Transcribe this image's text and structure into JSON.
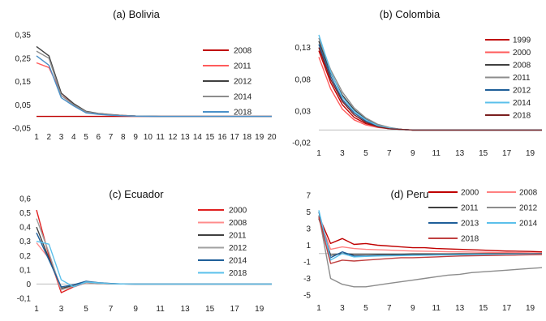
{
  "chart_data": [
    {
      "type": "line",
      "title": "(a)  Bolivia",
      "x": [
        1,
        2,
        3,
        4,
        5,
        6,
        7,
        8,
        9,
        10,
        11,
        12,
        13,
        14,
        15,
        16,
        17,
        18,
        19,
        20
      ],
      "x_tick_labels": [
        "1",
        "2",
        "3",
        "4",
        "5",
        "6",
        "7",
        "8",
        "9",
        "10",
        "11",
        "12",
        "13",
        "14",
        "15",
        "16",
        "17",
        "18",
        "19",
        "20"
      ],
      "ylim": [
        -0.05,
        0.35
      ],
      "y_ticks": [
        -0.05,
        0.05,
        0.15,
        0.25,
        0.35
      ],
      "y_tick_labels": [
        "-0,05",
        "0,05",
        "0,15",
        "0,25",
        "0,35"
      ],
      "legend_position": "right",
      "series": [
        {
          "name": "2008",
          "color": "#c00000",
          "values": [
            0,
            0,
            0,
            0,
            0,
            0,
            0,
            0,
            0,
            0,
            0,
            0,
            0,
            0,
            0,
            0,
            0,
            0,
            0,
            0
          ]
        },
        {
          "name": "2011",
          "color": "#ff5b5b",
          "values": [
            0.23,
            0.21,
            0.1,
            0.05,
            0.02,
            0.012,
            0.007,
            0.004,
            0.002,
            0.001,
            0,
            0,
            0,
            0,
            0,
            0,
            0,
            0,
            0,
            0
          ]
        },
        {
          "name": "2012",
          "color": "#404040",
          "values": [
            0.3,
            0.26,
            0.1,
            0.055,
            0.022,
            0.013,
            0.008,
            0.004,
            0.002,
            0.001,
            0,
            0,
            0,
            0,
            0,
            0,
            0,
            0,
            0,
            0
          ]
        },
        {
          "name": "2014",
          "color": "#8c8c8c",
          "values": [
            0.28,
            0.25,
            0.09,
            0.05,
            0.02,
            0.012,
            0.007,
            0.004,
            0.002,
            0.001,
            0,
            0,
            0,
            0,
            0,
            0,
            0,
            0,
            0,
            0
          ]
        },
        {
          "name": "2018",
          "color": "#4a90c8",
          "values": [
            0.26,
            0.22,
            0.08,
            0.045,
            0.015,
            0.009,
            0.005,
            0.003,
            0.001,
            0.0005,
            0,
            0,
            0,
            0,
            0,
            0,
            0,
            0,
            0,
            0
          ]
        }
      ]
    },
    {
      "type": "line",
      "title": "(b)  Colombia",
      "x": [
        1,
        2,
        3,
        4,
        5,
        6,
        7,
        8,
        9,
        10,
        11,
        12,
        13,
        14,
        15,
        16,
        17,
        18,
        19,
        20
      ],
      "x_tick_labels": [
        "1",
        "3",
        "5",
        "7",
        "9",
        "11",
        "13",
        "15",
        "17",
        "19"
      ],
      "ylim": [
        -0.02,
        0.15
      ],
      "y_ticks": [
        -0.02,
        0.03,
        0.08,
        0.13
      ],
      "y_tick_labels": [
        "-0,02",
        "0,03",
        "0,08",
        "0,13"
      ],
      "legend_position": "right",
      "series": [
        {
          "name": "1999",
          "color": "#c00000",
          "values": [
            0.125,
            0.075,
            0.04,
            0.02,
            0.01,
            0.005,
            0.002,
            0.001,
            0,
            0,
            0,
            0,
            0,
            0,
            0,
            0,
            0,
            0,
            0,
            0
          ]
        },
        {
          "name": "2000",
          "color": "#ff5b5b",
          "values": [
            0.115,
            0.065,
            0.033,
            0.016,
            0.008,
            0.004,
            0.002,
            0.001,
            0,
            0,
            0,
            0,
            0,
            0,
            0,
            0,
            0,
            0,
            0,
            0
          ]
        },
        {
          "name": "2008",
          "color": "#404040",
          "values": [
            0.14,
            0.09,
            0.055,
            0.032,
            0.017,
            0.008,
            0.003,
            0.001,
            0,
            0,
            0,
            0,
            0,
            0,
            0,
            0,
            0,
            0,
            0,
            0
          ]
        },
        {
          "name": "2011",
          "color": "#8c8c8c",
          "values": [
            0.145,
            0.095,
            0.06,
            0.035,
            0.019,
            0.009,
            0.004,
            0.001,
            0,
            0,
            0,
            0,
            0,
            0,
            0,
            0,
            0,
            0,
            0,
            0
          ]
        },
        {
          "name": "2012",
          "color": "#1f5f99",
          "values": [
            0.135,
            0.085,
            0.048,
            0.027,
            0.014,
            0.006,
            0.002,
            0.001,
            0,
            0,
            0,
            0,
            0,
            0,
            0,
            0,
            0,
            0,
            0,
            0
          ]
        },
        {
          "name": "2014",
          "color": "#5bc0eb",
          "values": [
            0.15,
            0.092,
            0.052,
            0.03,
            0.016,
            0.007,
            0.003,
            0.001,
            0,
            0,
            0,
            0,
            0,
            0,
            0,
            0,
            0,
            0,
            0,
            0
          ]
        },
        {
          "name": "2018",
          "color": "#7a1f1f",
          "values": [
            0.13,
            0.08,
            0.045,
            0.024,
            0.012,
            0.005,
            0.002,
            0.001,
            0,
            0,
            0,
            0,
            0,
            0,
            0,
            0,
            0,
            0,
            0,
            0
          ]
        }
      ]
    },
    {
      "type": "line",
      "title": "(c)  Ecuador",
      "x": [
        1,
        2,
        3,
        4,
        5,
        6,
        7,
        8,
        9,
        10,
        11,
        12,
        13,
        14,
        15,
        16,
        17,
        18,
        19,
        20
      ],
      "x_tick_labels": [
        "1",
        "3",
        "5",
        "7",
        "9",
        "11",
        "13",
        "15",
        "17",
        "19"
      ],
      "ylim": [
        -0.1,
        0.6
      ],
      "y_ticks": [
        -0.1,
        0,
        0.1,
        0.2,
        0.3,
        0.4,
        0.5,
        0.6
      ],
      "y_tick_labels": [
        "-0,1",
        "0",
        "0,1",
        "0,2",
        "0,3",
        "0,4",
        "0,5",
        "0,6"
      ],
      "legend_position": "right",
      "series": [
        {
          "name": "2000",
          "color": "#e02020",
          "values": [
            0.52,
            0.2,
            -0.06,
            -0.02,
            0.01,
            0.005,
            0.002,
            0.001,
            0,
            0,
            0,
            0,
            0,
            0,
            0,
            0,
            0,
            0,
            0,
            0
          ]
        },
        {
          "name": "2008",
          "color": "#ff8c8c",
          "values": [
            0.29,
            0.18,
            -0.04,
            -0.01,
            0.008,
            0.004,
            0.002,
            0.001,
            0,
            0,
            0,
            0,
            0,
            0,
            0,
            0,
            0,
            0,
            0,
            0
          ]
        },
        {
          "name": "2011",
          "color": "#404040",
          "values": [
            0.4,
            0.18,
            -0.03,
            -0.01,
            0.01,
            0.005,
            0.002,
            0.001,
            0,
            0,
            0,
            0,
            0,
            0,
            0,
            0,
            0,
            0,
            0,
            0
          ]
        },
        {
          "name": "2012",
          "color": "#a0a0a0",
          "values": [
            0.46,
            0.22,
            -0.04,
            -0.015,
            0.01,
            0.005,
            0.002,
            0.001,
            0,
            0,
            0,
            0,
            0,
            0,
            0,
            0,
            0,
            0,
            0,
            0
          ]
        },
        {
          "name": "2014",
          "color": "#1f5f99",
          "values": [
            0.36,
            0.17,
            -0.02,
            -0.005,
            0.02,
            0.01,
            0.004,
            0.001,
            0,
            0,
            0,
            0,
            0,
            0,
            0,
            0,
            0,
            0,
            0,
            0
          ]
        },
        {
          "name": "2018",
          "color": "#5bc0eb",
          "values": [
            0.3,
            0.28,
            0.03,
            -0.02,
            0.015,
            0.008,
            0.003,
            0.001,
            0,
            0,
            0,
            0,
            0,
            0,
            0,
            0,
            0,
            0,
            0,
            0
          ]
        }
      ]
    },
    {
      "type": "line",
      "title": "(d)  Peru",
      "x": [
        1,
        2,
        3,
        4,
        5,
        6,
        7,
        8,
        9,
        10,
        11,
        12,
        13,
        14,
        15,
        16,
        17,
        18,
        19,
        20
      ],
      "x_tick_labels": [
        "1",
        "3",
        "5",
        "7",
        "9",
        "11",
        "13",
        "15",
        "17",
        "19"
      ],
      "ylim": [
        -5,
        7
      ],
      "y_ticks": [
        -5,
        -3,
        -1,
        1,
        3,
        5,
        7
      ],
      "y_tick_labels": [
        "-5",
        "-3",
        "-1",
        "1",
        "3",
        "5",
        "7"
      ],
      "legend_position": "top",
      "series": [
        {
          "name": "2000",
          "color": "#c00000",
          "values": [
            4.5,
            1.2,
            1.8,
            1.1,
            1.2,
            1.0,
            0.9,
            0.8,
            0.7,
            0.7,
            0.6,
            0.55,
            0.5,
            0.45,
            0.4,
            0.35,
            0.3,
            0.28,
            0.25,
            0.2
          ]
        },
        {
          "name": "2008",
          "color": "#ff8080",
          "values": [
            4.3,
            0.5,
            0.8,
            0.6,
            0.5,
            0.45,
            0.4,
            0.35,
            0.3,
            0.28,
            0.25,
            0.22,
            0.2,
            0.18,
            0.15,
            0.13,
            0.12,
            0.1,
            0.08,
            0.06
          ]
        },
        {
          "name": "2011",
          "color": "#404040",
          "values": [
            4.2,
            -0.2,
            0,
            -0.1,
            -0.1,
            -0.1,
            -0.1,
            -0.1,
            -0.05,
            -0.05,
            -0.05,
            -0.05,
            -0.03,
            -0.03,
            -0.02,
            -0.02,
            -0.02,
            -0.01,
            -0.01,
            0
          ]
        },
        {
          "name": "2012",
          "color": "#8c8c8c",
          "values": [
            4.6,
            -3.0,
            -3.7,
            -4.0,
            -4.0,
            -3.8,
            -3.6,
            -3.4,
            -3.2,
            -3.0,
            -2.8,
            -2.6,
            -2.5,
            -2.3,
            -2.2,
            -2.1,
            -2.0,
            -1.9,
            -1.8,
            -1.7
          ]
        },
        {
          "name": "2013",
          "color": "#1f5f99",
          "values": [
            5.0,
            -0.5,
            0.2,
            -0.3,
            -0.3,
            -0.25,
            -0.25,
            -0.2,
            -0.2,
            -0.18,
            -0.16,
            -0.15,
            -0.13,
            -0.12,
            -0.1,
            -0.1,
            -0.08,
            -0.07,
            -0.06,
            -0.05
          ]
        },
        {
          "name": "2014",
          "color": "#5bc0eb",
          "values": [
            5.2,
            -0.8,
            0.0,
            -0.4,
            -0.35,
            -0.3,
            -0.28,
            -0.25,
            -0.22,
            -0.2,
            -0.18,
            -0.16,
            -0.15,
            -0.13,
            -0.12,
            -0.1,
            -0.09,
            -0.08,
            -0.07,
            -0.06
          ]
        },
        {
          "name": "2018",
          "color": "#c04040",
          "values": [
            4.4,
            -1.2,
            -0.8,
            -0.9,
            -0.8,
            -0.7,
            -0.6,
            -0.5,
            -0.5,
            -0.45,
            -0.4,
            -0.35,
            -0.3,
            -0.28,
            -0.25,
            -0.22,
            -0.2,
            -0.18,
            -0.15,
            -0.12
          ]
        }
      ]
    }
  ]
}
